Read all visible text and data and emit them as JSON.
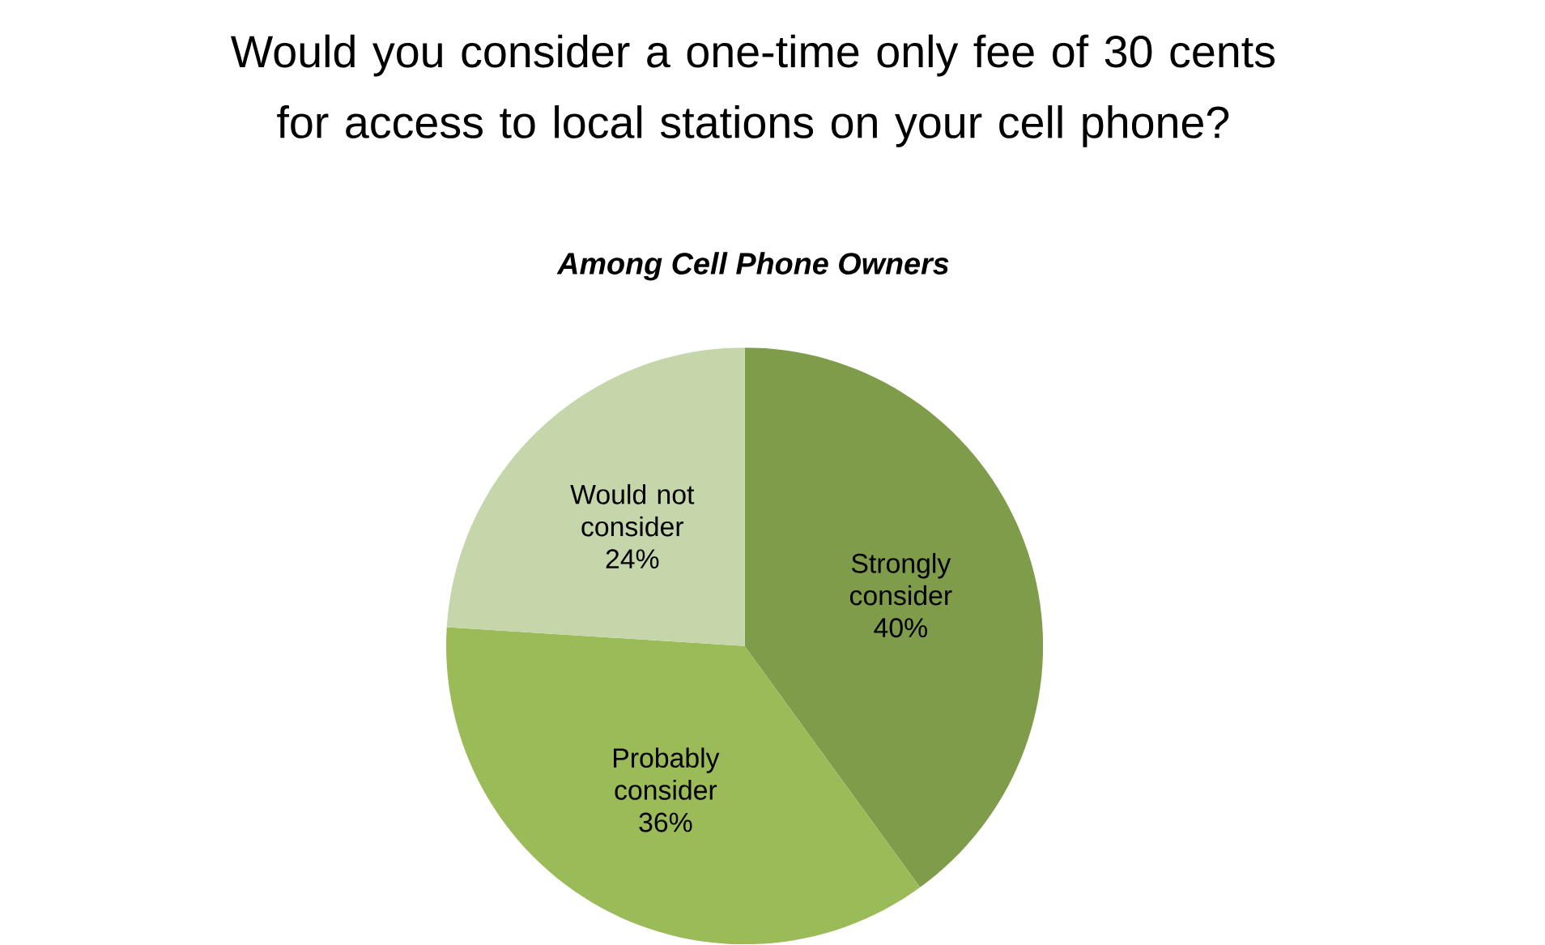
{
  "chart_data": {
    "type": "pie",
    "title": "Would you consider a one-time only fee of 30 cents for access to local stations on your cell phone?",
    "subtitle": "Among Cell Phone Owners",
    "categories": [
      "Strongly consider",
      "Probably consider",
      "Would not consider"
    ],
    "values": [
      40,
      36,
      24
    ],
    "colors": [
      "#7f9c4a",
      "#9bbb59",
      "#c5d6ab"
    ],
    "value_labels": [
      "40%",
      "36%",
      "24%"
    ]
  }
}
